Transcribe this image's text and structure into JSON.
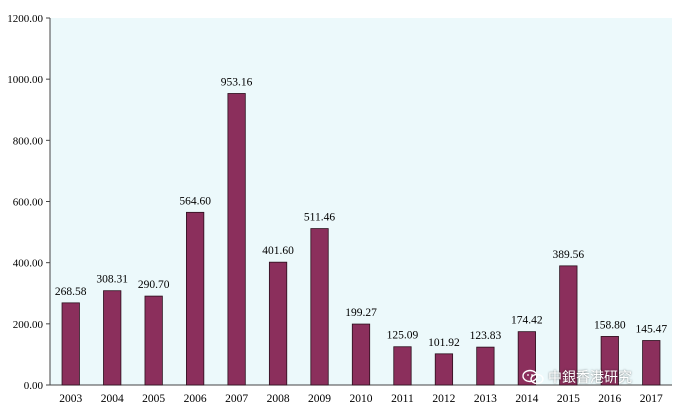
{
  "chart_data": {
    "type": "bar",
    "categories": [
      "2003",
      "2004",
      "2005",
      "2006",
      "2007",
      "2008",
      "2009",
      "2010",
      "2011",
      "2012",
      "2013",
      "2014",
      "2015",
      "2016",
      "2017"
    ],
    "values": [
      268.58,
      308.31,
      290.7,
      564.6,
      953.16,
      401.6,
      511.46,
      199.27,
      125.09,
      101.92,
      123.83,
      174.42,
      389.56,
      158.8,
      145.47
    ],
    "value_labels": [
      "268.58",
      "308.31",
      "290.70",
      "564.60",
      "953.16",
      "401.60",
      "511.46",
      "199.27",
      "125.09",
      "101.92",
      "123.83",
      "174.42",
      "389.56",
      "158.80",
      "145.47"
    ],
    "y_ticks": [
      "0.00",
      "200.00",
      "400.00",
      "600.00",
      "800.00",
      "1000.00",
      "1200.00"
    ],
    "ylim": [
      0,
      1200
    ],
    "title": "",
    "xlabel": "",
    "ylabel": "",
    "grid": false,
    "legend": "none",
    "colors": {
      "bar": "#8B2F5C",
      "bar_stroke": "#2a0f1c",
      "plot_background": "#ECF9FB",
      "axis": "#444444",
      "text": "#000000"
    }
  },
  "watermark": {
    "text": "中銀香港研究",
    "icon": "wechat-bubble-icon"
  }
}
